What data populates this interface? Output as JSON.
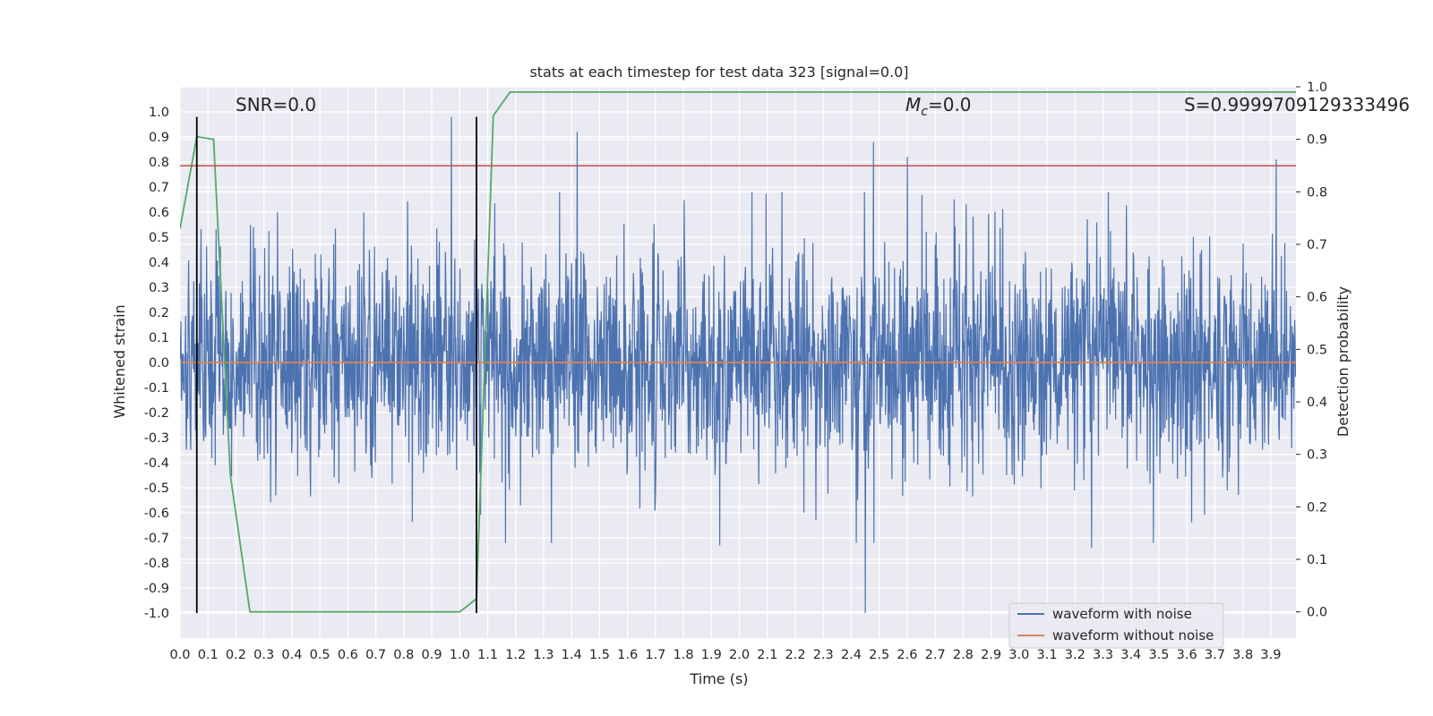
{
  "chart_data": {
    "type": "line",
    "title": "stats at each timestep for test data 323 [signal=0.0]",
    "xlabel": "Time (s)",
    "ylabel": "Whitened strain",
    "y2label": "Detection probability",
    "xlim": [
      0.0,
      3.99
    ],
    "ylim": [
      -1.1,
      1.1
    ],
    "y2lim": [
      -0.05,
      1.0
    ],
    "x_ticks": [
      "0.0",
      "0.1",
      "0.2",
      "0.3",
      "0.4",
      "0.5",
      "0.6",
      "0.7",
      "0.8",
      "0.9",
      "1.0",
      "1.1",
      "1.2",
      "1.3",
      "1.4",
      "1.5",
      "1.6",
      "1.7",
      "1.8",
      "1.9",
      "2.0",
      "2.1",
      "2.2",
      "2.3",
      "2.4",
      "2.5",
      "2.6",
      "2.7",
      "2.8",
      "2.9",
      "3.0",
      "3.1",
      "3.2",
      "3.3",
      "3.4",
      "3.5",
      "3.6",
      "3.7",
      "3.8",
      "3.9"
    ],
    "y_ticks": [
      "1.0",
      "0.9",
      "0.8",
      "0.7",
      "0.6",
      "0.5",
      "0.4",
      "0.3",
      "0.2",
      "0.1",
      "0.0",
      "-0.1",
      "-0.2",
      "-0.3",
      "-0.4",
      "-0.5",
      "-0.6",
      "-0.7",
      "-0.8",
      "-0.9",
      "-1.0"
    ],
    "y2_ticks": [
      "1.0",
      "0.9",
      "0.8",
      "0.7",
      "0.6",
      "0.5",
      "0.4",
      "0.3",
      "0.2",
      "0.1",
      "0.0"
    ],
    "grid": true,
    "legend_position": "bottom-right",
    "annotations": {
      "snr": "SNR=0.0",
      "mc_prefix": "M",
      "mc_sub": "c",
      "mc_suffix": "=0.0",
      "s": "S=0.9999709129333496"
    },
    "series": [
      {
        "name": "waveform with noise",
        "axis": "left",
        "color": "#4c72b0",
        "description_of_values": "noise samples",
        "amplitude_range": [
          -1.0,
          0.98
        ],
        "peaks": [
          [
            0.97,
            0.98
          ],
          [
            1.42,
            0.92
          ],
          [
            2.48,
            0.88
          ],
          [
            2.6,
            0.82
          ],
          [
            3.92,
            0.81
          ],
          [
            2.45,
            -1.0
          ],
          [
            3.26,
            -0.74
          ],
          [
            1.93,
            -0.73
          ]
        ]
      },
      {
        "name": "waveform without noise",
        "axis": "left",
        "color": "#dd8452",
        "x": [
          0.0,
          3.99
        ],
        "y": [
          0.0,
          0.0
        ]
      },
      {
        "axis": "right",
        "color": "#55a868",
        "x": [
          0.0,
          0.06,
          0.12,
          0.18,
          0.25,
          0.31,
          0.37,
          0.5,
          0.75,
          1.0,
          1.06,
          1.12,
          1.18,
          1.5,
          2.0,
          3.0,
          3.99
        ],
        "y": [
          0.73,
          0.905,
          0.9,
          0.26,
          0.0,
          0.0,
          0.0,
          0.0,
          0.0,
          0.0,
          0.025,
          0.945,
          0.99,
          0.99,
          0.99,
          0.99,
          0.99
        ]
      },
      {
        "axis": "left",
        "color": "#c44e52",
        "x": [
          0.0,
          3.99
        ],
        "y": [
          0.785,
          0.785
        ]
      }
    ],
    "vertical_lines": [
      {
        "x": 0.06,
        "y_range": [
          -1.0,
          0.98
        ],
        "color": "#000000"
      },
      {
        "x": 1.06,
        "y_range": [
          -1.0,
          0.98
        ],
        "color": "#000000"
      }
    ]
  }
}
